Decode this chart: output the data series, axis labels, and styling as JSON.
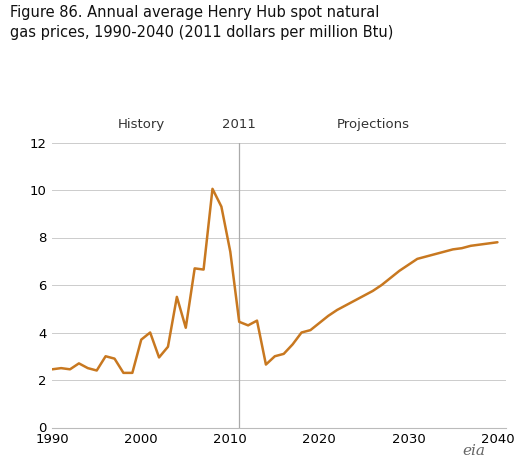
{
  "title": "Figure 86. Annual average Henry Hub spot natural\ngas prices, 1990-2040 (2011 dollars per million Btu)",
  "line_color": "#C87820",
  "background_color": "#ffffff",
  "vline_x": 2011,
  "vline_color": "#aaaaaa",
  "grid_color": "#cccccc",
  "label_history": "History",
  "label_2011": "2011",
  "label_projections": "Projections",
  "years": [
    1990,
    1991,
    1992,
    1993,
    1994,
    1995,
    1996,
    1997,
    1998,
    1999,
    2000,
    2001,
    2002,
    2003,
    2004,
    2005,
    2006,
    2007,
    2008,
    2009,
    2010,
    2011,
    2012,
    2013,
    2014,
    2015,
    2016,
    2017,
    2018,
    2019,
    2020,
    2021,
    2022,
    2023,
    2024,
    2025,
    2026,
    2027,
    2028,
    2029,
    2030,
    2031,
    2032,
    2033,
    2034,
    2035,
    2036,
    2037,
    2038,
    2039,
    2040
  ],
  "values": [
    2.45,
    2.5,
    2.45,
    2.7,
    2.5,
    2.4,
    3.0,
    2.9,
    2.3,
    2.3,
    3.7,
    4.0,
    2.95,
    3.4,
    5.5,
    4.2,
    6.7,
    6.65,
    10.05,
    9.3,
    7.4,
    4.45,
    4.3,
    4.5,
    2.65,
    3.0,
    3.1,
    3.5,
    4.0,
    4.1,
    4.4,
    4.7,
    4.95,
    5.15,
    5.35,
    5.55,
    5.75,
    6.0,
    6.3,
    6.6,
    6.85,
    7.1,
    7.2,
    7.3,
    7.4,
    7.5,
    7.55,
    7.65,
    7.7,
    7.75,
    7.8
  ],
  "xlim": [
    1990,
    2041
  ],
  "ylim": [
    0,
    12
  ],
  "yticks": [
    0,
    2,
    4,
    6,
    8,
    10,
    12
  ],
  "xticks": [
    1990,
    2000,
    2010,
    2020,
    2030,
    2040
  ],
  "title_fontsize": 10.5,
  "tick_fontsize": 9.5,
  "label_fontsize": 9.5,
  "line_width": 1.8,
  "eia_fontsize": 11
}
